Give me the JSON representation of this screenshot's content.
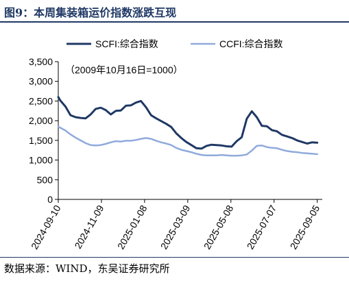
{
  "figure": {
    "title": "图9：本周集装箱运价指数涨跌互现",
    "source": "数据来源：WIND，东吴证券研究所"
  },
  "chart_data": {
    "type": "line",
    "annotation": "（2009年10月16日=1000）",
    "ylim": [
      0,
      3500
    ],
    "yticks": [
      0,
      500,
      1000,
      1500,
      2000,
      2500,
      3000,
      3500
    ],
    "ytick_labels": [
      "0",
      "500",
      "1,000",
      "1,500",
      "2,000",
      "2,500",
      "3,000",
      "3,500"
    ],
    "xlim": [
      "2024-09-10",
      "2025-09-12"
    ],
    "xticks": [
      "2024-09-10",
      "2024-11-09",
      "2025-01-08",
      "2025-03-09",
      "2025-05-08",
      "2025-07-07",
      "2025-09-05"
    ],
    "grid": false,
    "legend": "top",
    "series": [
      {
        "name": "SCFI:综合指数",
        "color": "#1f3864",
        "points": [
          [
            "2024-09-10",
            2600
          ],
          [
            "2024-09-13",
            2510
          ],
          [
            "2024-09-20",
            2360
          ],
          [
            "2024-09-27",
            2140
          ],
          [
            "2024-10-04",
            2090
          ],
          [
            "2024-10-11",
            2070
          ],
          [
            "2024-10-18",
            2060
          ],
          [
            "2024-10-25",
            2160
          ],
          [
            "2024-11-01",
            2300
          ],
          [
            "2024-11-08",
            2330
          ],
          [
            "2024-11-15",
            2270
          ],
          [
            "2024-11-22",
            2160
          ],
          [
            "2024-11-29",
            2250
          ],
          [
            "2024-12-06",
            2260
          ],
          [
            "2024-12-13",
            2380
          ],
          [
            "2024-12-20",
            2390
          ],
          [
            "2024-12-27",
            2460
          ],
          [
            "2025-01-03",
            2500
          ],
          [
            "2025-01-10",
            2340
          ],
          [
            "2025-01-17",
            2140
          ],
          [
            "2025-01-24",
            2060
          ],
          [
            "2025-01-31",
            1990
          ],
          [
            "2025-02-07",
            1920
          ],
          [
            "2025-02-14",
            1840
          ],
          [
            "2025-02-21",
            1680
          ],
          [
            "2025-02-28",
            1560
          ],
          [
            "2025-03-07",
            1460
          ],
          [
            "2025-03-14",
            1380
          ],
          [
            "2025-03-21",
            1300
          ],
          [
            "2025-03-28",
            1290
          ],
          [
            "2025-04-04",
            1360
          ],
          [
            "2025-04-11",
            1390
          ],
          [
            "2025-04-18",
            1380
          ],
          [
            "2025-04-25",
            1370
          ],
          [
            "2025-05-02",
            1350
          ],
          [
            "2025-05-09",
            1340
          ],
          [
            "2025-05-16",
            1480
          ],
          [
            "2025-05-23",
            1580
          ],
          [
            "2025-05-30",
            2050
          ],
          [
            "2025-06-06",
            2240
          ],
          [
            "2025-06-13",
            2090
          ],
          [
            "2025-06-20",
            1870
          ],
          [
            "2025-06-27",
            1860
          ],
          [
            "2025-07-04",
            1760
          ],
          [
            "2025-07-11",
            1730
          ],
          [
            "2025-07-18",
            1640
          ],
          [
            "2025-07-25",
            1600
          ],
          [
            "2025-08-01",
            1560
          ],
          [
            "2025-08-08",
            1500
          ],
          [
            "2025-08-15",
            1460
          ],
          [
            "2025-08-22",
            1420
          ],
          [
            "2025-08-29",
            1450
          ],
          [
            "2025-09-05",
            1440
          ]
        ]
      },
      {
        "name": "CCFI:综合指数",
        "color": "#8faadc",
        "points": [
          [
            "2024-09-10",
            1850
          ],
          [
            "2024-09-13",
            1820
          ],
          [
            "2024-09-20",
            1750
          ],
          [
            "2024-09-27",
            1650
          ],
          [
            "2024-10-04",
            1570
          ],
          [
            "2024-10-11",
            1500
          ],
          [
            "2024-10-18",
            1430
          ],
          [
            "2024-10-25",
            1380
          ],
          [
            "2024-11-01",
            1370
          ],
          [
            "2024-11-08",
            1380
          ],
          [
            "2024-11-15",
            1410
          ],
          [
            "2024-11-22",
            1450
          ],
          [
            "2024-11-29",
            1480
          ],
          [
            "2024-12-06",
            1470
          ],
          [
            "2024-12-13",
            1490
          ],
          [
            "2024-12-20",
            1490
          ],
          [
            "2024-12-27",
            1510
          ],
          [
            "2025-01-03",
            1540
          ],
          [
            "2025-01-10",
            1560
          ],
          [
            "2025-01-17",
            1540
          ],
          [
            "2025-01-24",
            1490
          ],
          [
            "2025-01-31",
            1450
          ],
          [
            "2025-02-07",
            1420
          ],
          [
            "2025-02-14",
            1380
          ],
          [
            "2025-02-21",
            1310
          ],
          [
            "2025-02-28",
            1260
          ],
          [
            "2025-03-07",
            1230
          ],
          [
            "2025-03-14",
            1200
          ],
          [
            "2025-03-21",
            1160
          ],
          [
            "2025-03-28",
            1130
          ],
          [
            "2025-04-04",
            1120
          ],
          [
            "2025-04-11",
            1120
          ],
          [
            "2025-04-18",
            1120
          ],
          [
            "2025-04-25",
            1130
          ],
          [
            "2025-05-02",
            1120
          ],
          [
            "2025-05-09",
            1110
          ],
          [
            "2025-05-16",
            1110
          ],
          [
            "2025-05-23",
            1120
          ],
          [
            "2025-05-30",
            1140
          ],
          [
            "2025-06-06",
            1240
          ],
          [
            "2025-06-13",
            1360
          ],
          [
            "2025-06-20",
            1370
          ],
          [
            "2025-06-27",
            1330
          ],
          [
            "2025-07-04",
            1310
          ],
          [
            "2025-07-11",
            1300
          ],
          [
            "2025-07-18",
            1260
          ],
          [
            "2025-07-25",
            1230
          ],
          [
            "2025-08-01",
            1210
          ],
          [
            "2025-08-08",
            1200
          ],
          [
            "2025-08-15",
            1180
          ],
          [
            "2025-08-22",
            1170
          ],
          [
            "2025-08-29",
            1160
          ],
          [
            "2025-09-05",
            1150
          ]
        ]
      }
    ]
  }
}
